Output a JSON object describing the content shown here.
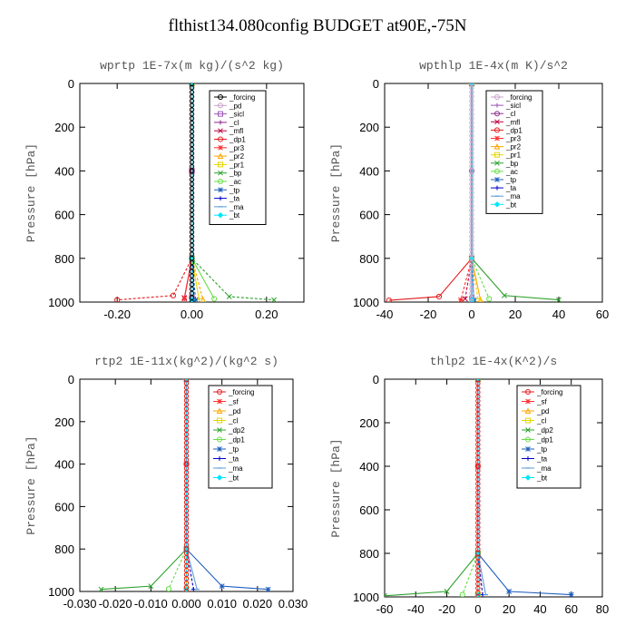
{
  "title": "flthist134.080config  BUDGET at90E,-75N",
  "chart_data": [
    {
      "type": "line",
      "title": "wprtp   1E-7x(m kg)/(s^2 kg)",
      "ylabel": "Pressure [hPa]",
      "xlim": [
        -0.3,
        0.3
      ],
      "ylim": [
        0,
        1000
      ],
      "xticks": [
        -0.2,
        0.0,
        0.2
      ],
      "xticklabels": [
        "-0.20",
        "0.00",
        "0.20"
      ],
      "yticks": [
        0,
        200,
        400,
        600,
        800,
        1000
      ],
      "series": [
        {
          "name": "_forcing",
          "color": "#000000",
          "marker": "circle",
          "x": [
            0,
            0,
            0,
            0
          ],
          "y": [
            0,
            400,
            800,
            980
          ]
        },
        {
          "name": "_pd",
          "color": "#c8a2c8",
          "marker": "circle",
          "x": [
            0,
            0,
            0,
            0
          ],
          "y": [
            0,
            400,
            800,
            980
          ]
        },
        {
          "name": "_sicl",
          "color": "#9b59b6",
          "marker": "square",
          "x": [
            0,
            0,
            0,
            0
          ],
          "y": [
            0,
            400,
            800,
            980
          ]
        },
        {
          "name": "_cl",
          "color": "#8e2c8e",
          "marker": "plus",
          "x": [
            0,
            0,
            0,
            0
          ],
          "y": [
            0,
            400,
            800,
            980
          ]
        },
        {
          "name": "_mfl",
          "color": "#b8003c",
          "marker": "cross",
          "x": [
            0,
            0,
            0,
            -0.02
          ],
          "y": [
            0,
            400,
            800,
            980
          ]
        },
        {
          "name": "_dp1",
          "color": "#e41a1c",
          "marker": "circle",
          "x": [
            0,
            0,
            -0.05,
            -0.2
          ],
          "y": [
            0,
            800,
            970,
            990
          ]
        },
        {
          "name": "_pr3",
          "color": "#ff3030",
          "marker": "star",
          "x": [
            0,
            0,
            -0.02
          ],
          "y": [
            0,
            800,
            985
          ]
        },
        {
          "name": "_pr2",
          "color": "#ffa500",
          "marker": "triangle",
          "x": [
            0,
            0,
            0.03
          ],
          "y": [
            0,
            800,
            990
          ]
        },
        {
          "name": "_pr1",
          "color": "#e6d400",
          "marker": "square",
          "x": [
            0,
            0,
            0.02
          ],
          "y": [
            0,
            800,
            995
          ]
        },
        {
          "name": "_bp",
          "color": "#2ca02c",
          "marker": "cross",
          "x": [
            0,
            0,
            0.1,
            0.22
          ],
          "y": [
            0,
            800,
            975,
            990
          ]
        },
        {
          "name": "_ac",
          "color": "#66dd44",
          "marker": "circle",
          "x": [
            0,
            0,
            0.06
          ],
          "y": [
            0,
            800,
            985
          ]
        },
        {
          "name": "_tp",
          "color": "#1f5fbf",
          "marker": "star",
          "x": [
            0,
            0,
            0.01
          ],
          "y": [
            0,
            800,
            990
          ]
        },
        {
          "name": "_ta",
          "color": "#0000cc",
          "marker": "plus",
          "x": [
            0,
            0,
            0
          ],
          "y": [
            0,
            800,
            990
          ]
        },
        {
          "name": "_ma",
          "color": "#5a9bd4",
          "marker": "dash",
          "x": [
            0,
            0,
            0
          ],
          "y": [
            0,
            800,
            990
          ]
        },
        {
          "name": "_bt",
          "color": "#00e5ff",
          "marker": "diamond",
          "x": [
            0,
            0,
            0
          ],
          "y": [
            0,
            800,
            990
          ]
        }
      ]
    },
    {
      "type": "line",
      "title": "wpthlp   1E-4x(m K)/s^2",
      "ylabel": "Pressure [hPa]",
      "xlim": [
        -40,
        60
      ],
      "ylim": [
        0,
        1000
      ],
      "xticks": [
        -40,
        -20,
        0,
        20,
        40,
        60
      ],
      "xticklabels": [
        "-40",
        "-20",
        "0",
        "20",
        "40",
        "60"
      ],
      "yticks": [
        0,
        200,
        400,
        600,
        800,
        1000
      ],
      "series": [
        {
          "name": "_forcing",
          "color": "#c8a2c8",
          "marker": "circle",
          "x": [
            0,
            0,
            0
          ],
          "y": [
            0,
            400,
            980
          ]
        },
        {
          "name": "_sicl",
          "color": "#9b59b6",
          "marker": "plus",
          "x": [
            0,
            0,
            0
          ],
          "y": [
            0,
            400,
            980
          ]
        },
        {
          "name": "_cl",
          "color": "#8e2c8e",
          "marker": "circle",
          "x": [
            0,
            0,
            0
          ],
          "y": [
            0,
            400,
            980
          ]
        },
        {
          "name": "_mfl",
          "color": "#b8003c",
          "marker": "cross",
          "x": [
            0,
            0,
            -3
          ],
          "y": [
            0,
            800,
            985
          ]
        },
        {
          "name": "_dp1",
          "color": "#e41a1c",
          "marker": "circle",
          "x": [
            0,
            0,
            -15,
            -38
          ],
          "y": [
            0,
            800,
            975,
            992
          ]
        },
        {
          "name": "_pr3",
          "color": "#ff3030",
          "marker": "star",
          "x": [
            0,
            0,
            -5
          ],
          "y": [
            0,
            800,
            990
          ]
        },
        {
          "name": "_pr2",
          "color": "#ffa500",
          "marker": "triangle",
          "x": [
            0,
            0,
            4
          ],
          "y": [
            0,
            800,
            990
          ]
        },
        {
          "name": "_pr1",
          "color": "#e6d400",
          "marker": "square",
          "x": [
            0,
            0,
            3
          ],
          "y": [
            0,
            800,
            995
          ]
        },
        {
          "name": "_bp",
          "color": "#2ca02c",
          "marker": "cross",
          "x": [
            0,
            0,
            15,
            40
          ],
          "y": [
            0,
            800,
            970,
            990
          ]
        },
        {
          "name": "_ac",
          "color": "#66dd44",
          "marker": "circle",
          "x": [
            0,
            0,
            8
          ],
          "y": [
            0,
            800,
            985
          ]
        },
        {
          "name": "_tp",
          "color": "#1f5fbf",
          "marker": "star",
          "x": [
            0,
            0,
            1
          ],
          "y": [
            0,
            800,
            990
          ]
        },
        {
          "name": "_ta",
          "color": "#0000cc",
          "marker": "plus",
          "x": [
            0,
            0,
            0
          ],
          "y": [
            0,
            800,
            990
          ]
        },
        {
          "name": "_ma",
          "color": "#5a9bd4",
          "marker": "dash",
          "x": [
            0,
            0,
            0
          ],
          "y": [
            0,
            800,
            990
          ]
        },
        {
          "name": "_bt",
          "color": "#00e5ff",
          "marker": "diamond",
          "x": [
            0,
            0,
            0
          ],
          "y": [
            0,
            800,
            990
          ]
        }
      ]
    },
    {
      "type": "line",
      "title": "rtp2   1E-11x(kg^2)/(kg^2 s)",
      "ylabel": "Pressure [hPa]",
      "xlim": [
        -0.03,
        0.03
      ],
      "ylim": [
        0,
        1000
      ],
      "xticks": [
        -0.03,
        -0.02,
        -0.01,
        0.0,
        0.01,
        0.02,
        0.03
      ],
      "xticklabels": [
        "-0.030",
        "-0.020",
        "-0.010",
        "0.000",
        "0.010",
        "0.020",
        "0.030"
      ],
      "yticks": [
        0,
        200,
        400,
        600,
        800,
        1000
      ],
      "series": [
        {
          "name": "_forcing",
          "color": "#e41a1c",
          "marker": "circle",
          "x": [
            0,
            0,
            0,
            0
          ],
          "y": [
            0,
            400,
            800,
            990
          ]
        },
        {
          "name": "_sf",
          "color": "#ff3030",
          "marker": "star",
          "x": [
            0,
            0,
            0,
            0
          ],
          "y": [
            0,
            400,
            800,
            990
          ]
        },
        {
          "name": "_pd",
          "color": "#ffa500",
          "marker": "triangle",
          "x": [
            0,
            0,
            0
          ],
          "y": [
            0,
            800,
            990
          ]
        },
        {
          "name": "_cl",
          "color": "#e6d400",
          "marker": "square",
          "x": [
            0,
            0,
            0
          ],
          "y": [
            0,
            800,
            990
          ]
        },
        {
          "name": "_dp2",
          "color": "#2ca02c",
          "marker": "cross",
          "x": [
            0,
            0,
            -0.01,
            -0.024
          ],
          "y": [
            0,
            800,
            975,
            990
          ]
        },
        {
          "name": "_dp1",
          "color": "#66dd44",
          "marker": "circle",
          "x": [
            0,
            0,
            -0.005
          ],
          "y": [
            0,
            800,
            988
          ]
        },
        {
          "name": "_tp",
          "color": "#1f5fbf",
          "marker": "star",
          "x": [
            0,
            0,
            0.01,
            0.023
          ],
          "y": [
            0,
            800,
            975,
            990
          ]
        },
        {
          "name": "_ta",
          "color": "#0000cc",
          "marker": "plus",
          "x": [
            0,
            0,
            0.002
          ],
          "y": [
            0,
            800,
            990
          ]
        },
        {
          "name": "_ma",
          "color": "#5a9bd4",
          "marker": "dash",
          "x": [
            0,
            0,
            0.003
          ],
          "y": [
            0,
            800,
            990
          ]
        },
        {
          "name": "_bt",
          "color": "#00e5ff",
          "marker": "diamond",
          "x": [
            0,
            0,
            0
          ],
          "y": [
            0,
            800,
            990
          ]
        }
      ]
    },
    {
      "type": "line",
      "title": "thlp2   1E-4x(K^2)/s",
      "ylabel": "Pressure [hPa]",
      "xlim": [
        -60,
        80
      ],
      "ylim": [
        0,
        1000
      ],
      "xticks": [
        -60,
        -40,
        -20,
        0,
        20,
        40,
        60,
        80
      ],
      "xticklabels": [
        "-60",
        "-40",
        "-20",
        "0",
        "20",
        "40",
        "60",
        "80"
      ],
      "yticks": [
        0,
        200,
        400,
        600,
        800,
        1000
      ],
      "series": [
        {
          "name": "_forcing",
          "color": "#e41a1c",
          "marker": "circle",
          "x": [
            0,
            0,
            0,
            0
          ],
          "y": [
            0,
            400,
            800,
            990
          ]
        },
        {
          "name": "_sf",
          "color": "#ff3030",
          "marker": "star",
          "x": [
            0,
            0,
            0,
            0
          ],
          "y": [
            0,
            400,
            800,
            990
          ]
        },
        {
          "name": "_pd",
          "color": "#ffa500",
          "marker": "triangle",
          "x": [
            0,
            0,
            0
          ],
          "y": [
            0,
            800,
            990
          ]
        },
        {
          "name": "_cl",
          "color": "#e6d400",
          "marker": "square",
          "x": [
            0,
            0,
            0
          ],
          "y": [
            0,
            800,
            990
          ]
        },
        {
          "name": "_dp2",
          "color": "#2ca02c",
          "marker": "cross",
          "x": [
            0,
            0,
            -20,
            -60
          ],
          "y": [
            0,
            800,
            975,
            995
          ]
        },
        {
          "name": "_dp1",
          "color": "#66dd44",
          "marker": "circle",
          "x": [
            0,
            0,
            -10
          ],
          "y": [
            0,
            800,
            990
          ]
        },
        {
          "name": "_tp",
          "color": "#1f5fbf",
          "marker": "star",
          "x": [
            0,
            0,
            20,
            60
          ],
          "y": [
            0,
            800,
            975,
            990
          ]
        },
        {
          "name": "_ta",
          "color": "#0000cc",
          "marker": "plus",
          "x": [
            0,
            0,
            3
          ],
          "y": [
            0,
            800,
            990
          ]
        },
        {
          "name": "_ma",
          "color": "#5a9bd4",
          "marker": "dash",
          "x": [
            0,
            0,
            5
          ],
          "y": [
            0,
            800,
            990
          ]
        },
        {
          "name": "_bt",
          "color": "#00e5ff",
          "marker": "diamond",
          "x": [
            0,
            0,
            0
          ],
          "y": [
            0,
            800,
            990
          ]
        }
      ]
    }
  ]
}
